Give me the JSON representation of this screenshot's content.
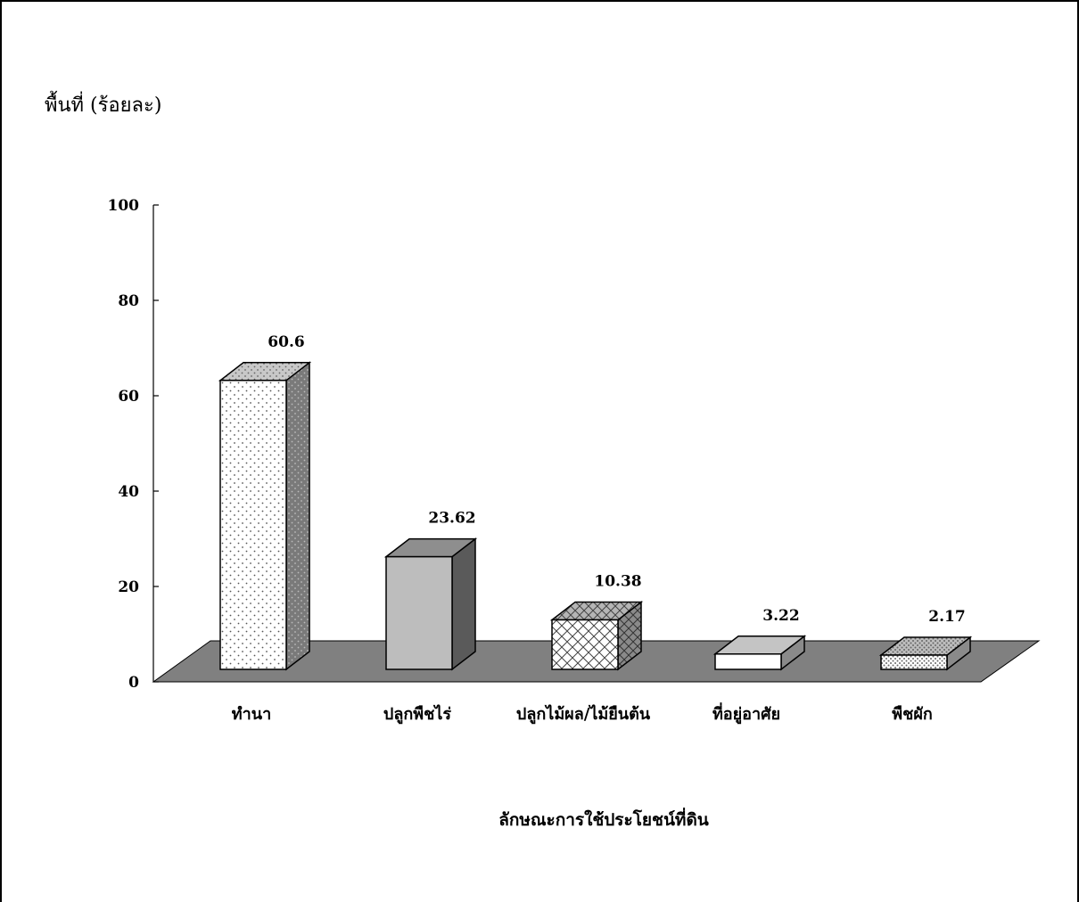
{
  "chart_data": {
    "type": "bar",
    "ylabel": "พื้นที่ (ร้อยละ)",
    "xlabel": "ลักษณะการใช้ประโยชน์ที่ดิน",
    "ylim": [
      0,
      100
    ],
    "yticks": [
      0,
      20,
      40,
      60,
      80,
      100
    ],
    "categories": [
      "ทำนา",
      "ปลูกพืชไร่",
      "ปลูกไม้ผล/ไม้ยืนต้น",
      "ที่อยู่อาศัย",
      "พืชผัก"
    ],
    "values": [
      60.6,
      23.62,
      10.38,
      3.22,
      2.17
    ],
    "value_labels": [
      "60.6",
      "23.62",
      "10.38",
      "3.22",
      "2.17"
    ],
    "style": "3d-column",
    "patterns": [
      "dots",
      "solid-gray",
      "crosshatch",
      "solid-white",
      "dense-dots"
    ],
    "floor_color": "#808080",
    "grid": false,
    "legend": "none"
  }
}
